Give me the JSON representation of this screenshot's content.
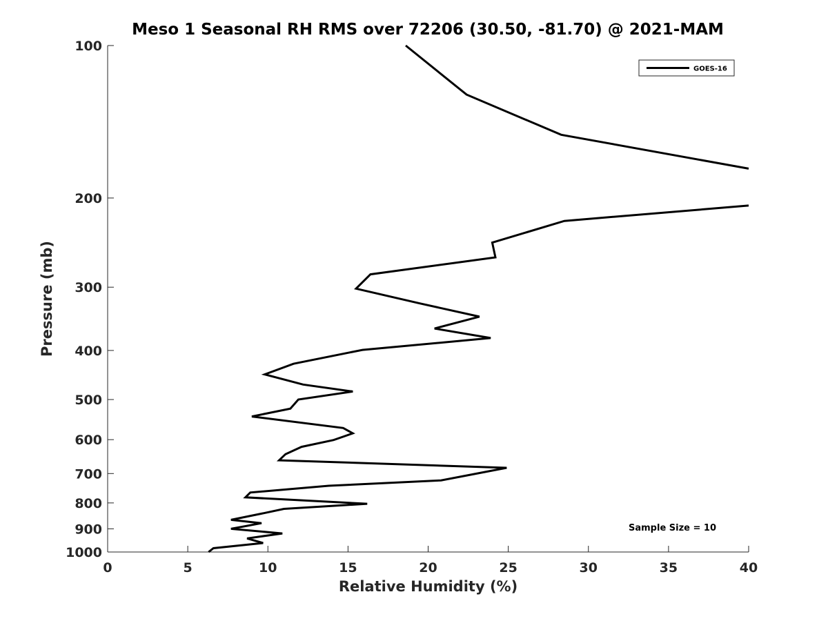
{
  "chart_data": {
    "type": "line",
    "title": "Meso 1 Seasonal RH RMS over 72206 (30.50, -81.70) @ 2021-MAM",
    "xlabel": "Relative Humidity (%)",
    "ylabel": "Pressure (mb)",
    "xlim": [
      0,
      40
    ],
    "ylim": [
      100,
      1000
    ],
    "y_scale": "log",
    "y_reversed": true,
    "x_ticks": [
      0,
      5,
      10,
      15,
      20,
      25,
      30,
      35,
      40
    ],
    "y_ticks": [
      100,
      200,
      300,
      400,
      500,
      600,
      700,
      800,
      900,
      1000
    ],
    "grid": false,
    "legend_position": "top-right",
    "annotation": "Sample Size = 10",
    "series": [
      {
        "name": "GOES-16",
        "color": "#000000",
        "segments": [
          [
            [
              18.6,
              100
            ],
            [
              22.4,
              125
            ],
            [
              28.3,
              150
            ],
            [
              40.0,
              175
            ]
          ],
          [
            [
              40.0,
              207
            ],
            [
              28.5,
              222
            ],
            [
              24.0,
              245
            ],
            [
              24.2,
              262
            ],
            [
              16.4,
              283
            ],
            [
              15.5,
              302
            ],
            [
              19.5,
              323
            ],
            [
              23.2,
              343
            ],
            [
              20.4,
              362
            ],
            [
              23.9,
              378
            ],
            [
              15.9,
              399
            ],
            [
              11.6,
              425
            ],
            [
              9.8,
              446
            ],
            [
              12.2,
              467
            ],
            [
              15.3,
              482
            ],
            [
              11.9,
              500
            ],
            [
              11.4,
              521
            ],
            [
              9.0,
              540
            ],
            [
              14.7,
              569
            ],
            [
              15.3,
              583
            ],
            [
              14.1,
              601
            ],
            [
              12.1,
              620
            ],
            [
              11.1,
              641
            ],
            [
              10.7,
              659
            ],
            [
              24.9,
              682
            ],
            [
              20.8,
              722
            ],
            [
              13.8,
              740
            ],
            [
              8.9,
              763
            ],
            [
              8.6,
              780
            ],
            [
              16.2,
              803
            ],
            [
              11.0,
              822
            ],
            [
              9.6,
              840
            ],
            [
              7.7,
              864
            ],
            [
              9.6,
              877
            ],
            [
              7.7,
              900
            ],
            [
              10.9,
              919
            ],
            [
              8.7,
              940
            ],
            [
              9.7,
              960
            ],
            [
              6.6,
              983
            ],
            [
              6.3,
              1000
            ]
          ]
        ]
      }
    ]
  }
}
